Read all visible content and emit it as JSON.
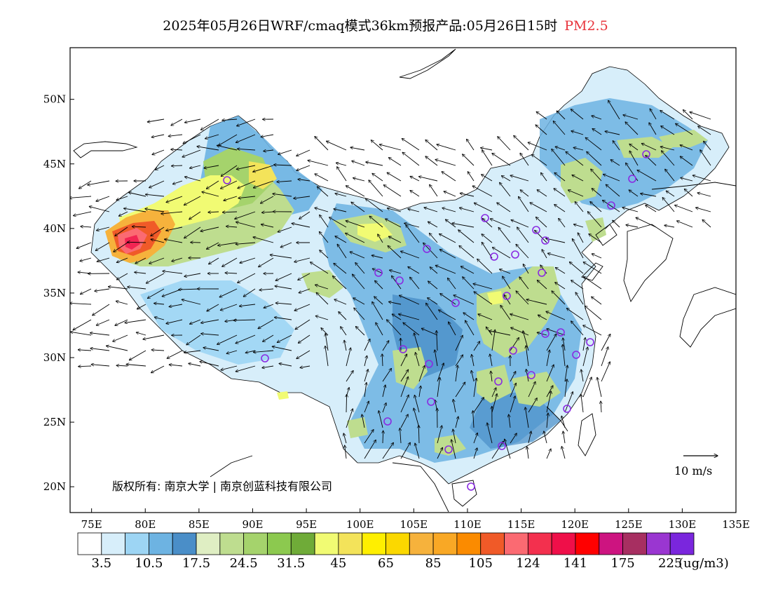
{
  "title": {
    "main": "2025年05月26日WRF/cmaq模式36km预报产品:05月26日15时",
    "pollutant": "PM2.5"
  },
  "axes": {
    "lon_labels": [
      "75E",
      "80E",
      "85E",
      "90E",
      "95E",
      "100E",
      "105E",
      "110E",
      "115E",
      "120E",
      "125E",
      "130E",
      "135E"
    ],
    "lat_labels": [
      "50N",
      "45N",
      "40N",
      "35N",
      "30N",
      "25N",
      "20N"
    ],
    "lon_range": [
      73,
      135
    ],
    "lat_range": [
      18,
      54
    ]
  },
  "colorbar": {
    "colors": [
      "#ffffff",
      "#d7eefa",
      "#9dd5f4",
      "#6db3e2",
      "#4a8ec8",
      "#dfeec3",
      "#bedd8f",
      "#a5d36c",
      "#8cc94f",
      "#6fab38",
      "#f1fb73",
      "#f3e35a",
      "#ffef00",
      "#fbd800",
      "#f6b23c",
      "#f9a825",
      "#fb8b00",
      "#f05a28",
      "#fb6a72",
      "#f3304e",
      "#ef0f49",
      "#ff0000",
      "#cd1480",
      "#a72f61",
      "#9a36d1",
      "#7a26dd"
    ],
    "labels": [
      "3.5",
      "10.5",
      "17.5",
      "24.5",
      "31.5",
      "45",
      "65",
      "85",
      "105",
      "124",
      "141",
      "175",
      "225"
    ],
    "unit": "(ug/m3)"
  },
  "wind_reference": {
    "label": "10 m/s"
  },
  "copyright": "版权所有: 南京大学 | 南京创蓝科技有限公司",
  "legend_colors": {
    "clean": "#d7eefa",
    "low": "#6db3e2",
    "moderate": "#bedd8f",
    "high": "#f1fb73",
    "very_high": "#fb8b00",
    "extreme": "#ef0f49",
    "station_marker": "#8a2be2"
  }
}
